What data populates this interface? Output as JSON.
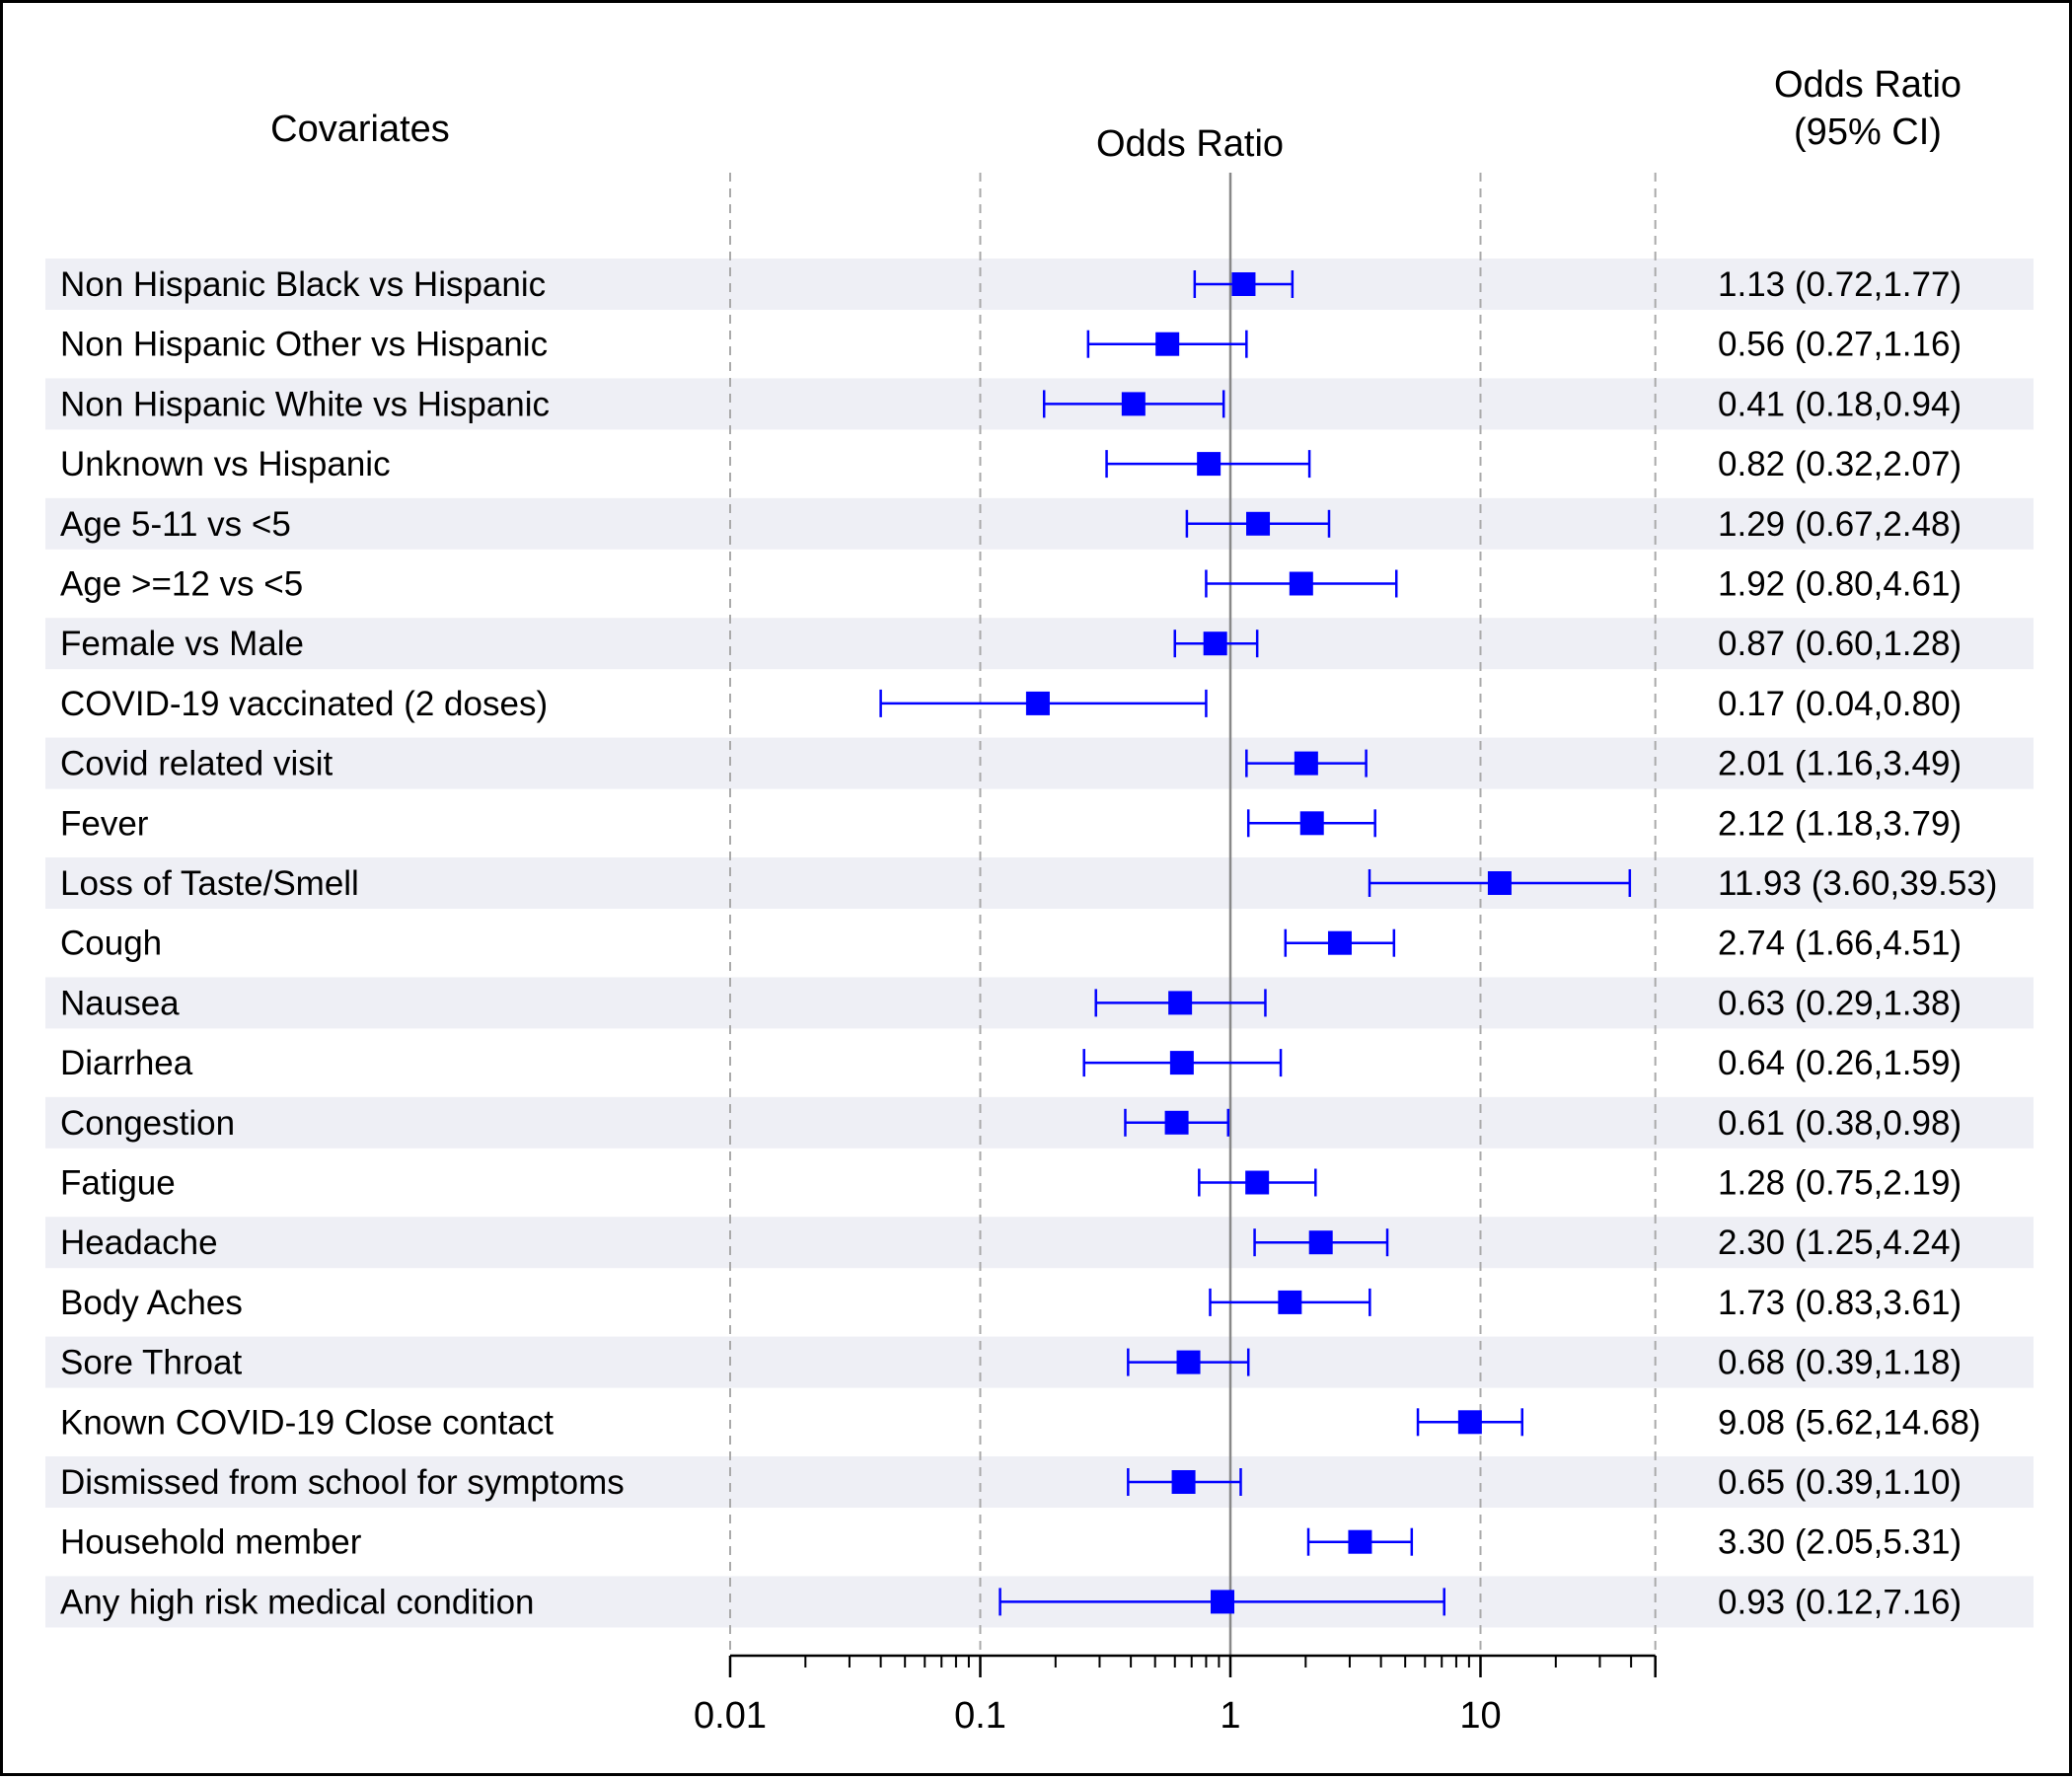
{
  "headers": {
    "covariates": "Covariates",
    "odds_ratio": "Odds Ratio",
    "or_ci_line1": "Odds Ratio",
    "or_ci_line2": "(95% CI)"
  },
  "colors": {
    "marker": "#0000ff",
    "band": "#eeeff5",
    "reference_line": "#888888",
    "grid": "#aaaaaa"
  },
  "chart_data": {
    "type": "forest",
    "x_scale": "log",
    "xlim": [
      0.01,
      50
    ],
    "reference_value": 1,
    "x_ticks": [
      0.01,
      0.1,
      1,
      10
    ],
    "x_tick_labels": [
      "0.01",
      "0.1",
      "1",
      "10"
    ],
    "gridlines": [
      0.01,
      0.1,
      10,
      50
    ],
    "rows": [
      {
        "label": "Non Hispanic Black vs Hispanic",
        "or": 1.13,
        "lo": 0.72,
        "hi": 1.77,
        "text": "1.13 (0.72,1.77)"
      },
      {
        "label": "Non Hispanic Other vs Hispanic",
        "or": 0.56,
        "lo": 0.27,
        "hi": 1.16,
        "text": "0.56 (0.27,1.16)"
      },
      {
        "label": "Non Hispanic White vs Hispanic",
        "or": 0.41,
        "lo": 0.18,
        "hi": 0.94,
        "text": "0.41 (0.18,0.94)"
      },
      {
        "label": "Unknown vs Hispanic",
        "or": 0.82,
        "lo": 0.32,
        "hi": 2.07,
        "text": "0.82 (0.32,2.07)"
      },
      {
        "label": "Age 5-11 vs <5",
        "or": 1.29,
        "lo": 0.67,
        "hi": 2.48,
        "text": "1.29 (0.67,2.48)"
      },
      {
        "label": "Age >=12 vs <5",
        "or": 1.92,
        "lo": 0.8,
        "hi": 4.61,
        "text": "1.92 (0.80,4.61)"
      },
      {
        "label": "Female vs Male",
        "or": 0.87,
        "lo": 0.6,
        "hi": 1.28,
        "text": "0.87 (0.60,1.28)"
      },
      {
        "label": "COVID-19 vaccinated (2 doses)",
        "or": 0.17,
        "lo": 0.04,
        "hi": 0.8,
        "text": "0.17 (0.04,0.80)"
      },
      {
        "label": "Covid related visit",
        "or": 2.01,
        "lo": 1.16,
        "hi": 3.49,
        "text": "2.01 (1.16,3.49)"
      },
      {
        "label": "Fever",
        "or": 2.12,
        "lo": 1.18,
        "hi": 3.79,
        "text": "2.12 (1.18,3.79)"
      },
      {
        "label": "Loss of Taste/Smell",
        "or": 11.93,
        "lo": 3.6,
        "hi": 39.53,
        "text": "11.93 (3.60,39.53)"
      },
      {
        "label": "Cough",
        "or": 2.74,
        "lo": 1.66,
        "hi": 4.51,
        "text": "2.74 (1.66,4.51)"
      },
      {
        "label": "Nausea",
        "or": 0.63,
        "lo": 0.29,
        "hi": 1.38,
        "text": "0.63 (0.29,1.38)"
      },
      {
        "label": "Diarrhea",
        "or": 0.64,
        "lo": 0.26,
        "hi": 1.59,
        "text": "0.64 (0.26,1.59)"
      },
      {
        "label": "Congestion",
        "or": 0.61,
        "lo": 0.38,
        "hi": 0.98,
        "text": "0.61 (0.38,0.98)"
      },
      {
        "label": "Fatigue",
        "or": 1.28,
        "lo": 0.75,
        "hi": 2.19,
        "text": "1.28 (0.75,2.19)"
      },
      {
        "label": "Headache",
        "or": 2.3,
        "lo": 1.25,
        "hi": 4.24,
        "text": "2.30 (1.25,4.24)"
      },
      {
        "label": "Body Aches",
        "or": 1.73,
        "lo": 0.83,
        "hi": 3.61,
        "text": "1.73 (0.83,3.61)"
      },
      {
        "label": "Sore Throat",
        "or": 0.68,
        "lo": 0.39,
        "hi": 1.18,
        "text": "0.68 (0.39,1.18)"
      },
      {
        "label": "Known COVID-19 Close contact",
        "or": 9.08,
        "lo": 5.62,
        "hi": 14.68,
        "text": "9.08 (5.62,14.68)"
      },
      {
        "label": "Dismissed from school for symptoms",
        "or": 0.65,
        "lo": 0.39,
        "hi": 1.1,
        "text": "0.65 (0.39,1.10)"
      },
      {
        "label": "Household member",
        "or": 3.3,
        "lo": 2.05,
        "hi": 5.31,
        "text": "3.30 (2.05,5.31)"
      },
      {
        "label": "Any high risk medical condition",
        "or": 0.93,
        "lo": 0.12,
        "hi": 7.16,
        "text": "0.93 (0.12,7.16)"
      }
    ]
  }
}
